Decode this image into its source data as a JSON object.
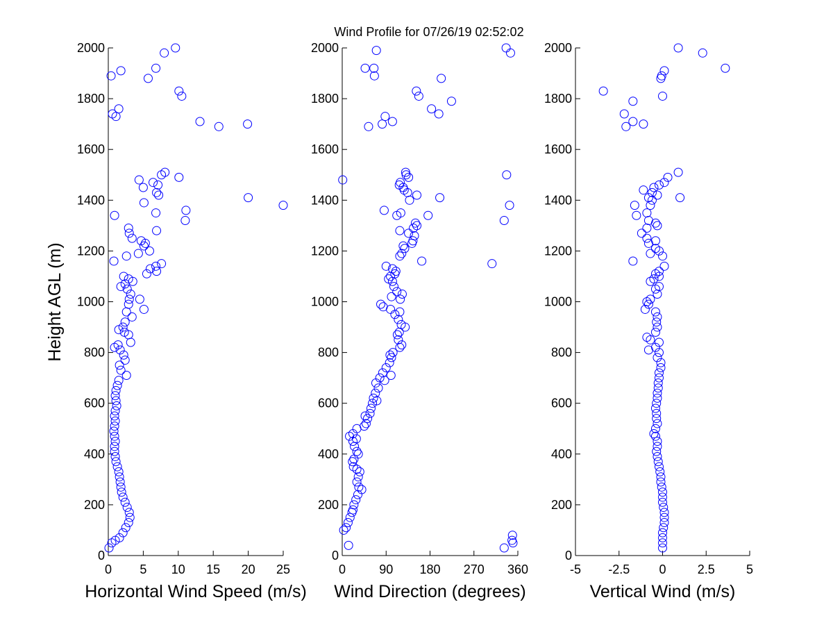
{
  "figure_title": "Wind Profile for  07/26/19 02:52:02",
  "ylabel": "Height AGL (m)",
  "marker_color": "#0000ff",
  "chart_data": [
    {
      "type": "scatter",
      "title": "",
      "xlabel": "Horizontal Wind Speed (m/s)",
      "ylabel": "Height AGL (m)",
      "xlim": [
        0,
        25
      ],
      "ylim": [
        0,
        2000
      ],
      "xticks": [
        0,
        5,
        10,
        15,
        20,
        25
      ],
      "xtick_labels": [
        "0",
        "5",
        "10",
        "15",
        "20",
        "25"
      ],
      "yticks": [
        0,
        200,
        400,
        600,
        800,
        1000,
        1200,
        1400,
        1600,
        1800,
        2000
      ],
      "ytick_labels": [
        "0",
        "200",
        "400",
        "600",
        "800",
        "1000",
        "1200",
        "1400",
        "1600",
        "1800",
        "2000"
      ],
      "marker": "open-circle",
      "points": [
        [
          0.1,
          30
        ],
        [
          0.5,
          50
        ],
        [
          1.0,
          60
        ],
        [
          1.6,
          70
        ],
        [
          2.1,
          90
        ],
        [
          2.5,
          110
        ],
        [
          2.9,
          130
        ],
        [
          3.1,
          150
        ],
        [
          3.0,
          170
        ],
        [
          2.7,
          190
        ],
        [
          2.4,
          210
        ],
        [
          2.1,
          230
        ],
        [
          1.9,
          250
        ],
        [
          1.8,
          270
        ],
        [
          1.7,
          290
        ],
        [
          1.6,
          310
        ],
        [
          1.5,
          330
        ],
        [
          1.3,
          350
        ],
        [
          1.1,
          370
        ],
        [
          1.0,
          390
        ],
        [
          0.9,
          410
        ],
        [
          0.9,
          430
        ],
        [
          1.0,
          450
        ],
        [
          0.9,
          470
        ],
        [
          0.8,
          490
        ],
        [
          0.9,
          510
        ],
        [
          1.0,
          530
        ],
        [
          0.9,
          550
        ],
        [
          1.0,
          570
        ],
        [
          1.2,
          590
        ],
        [
          1.1,
          610
        ],
        [
          1.0,
          630
        ],
        [
          1.1,
          650
        ],
        [
          1.3,
          670
        ],
        [
          1.5,
          690
        ],
        [
          2.6,
          710
        ],
        [
          1.8,
          730
        ],
        [
          1.6,
          750
        ],
        [
          2.4,
          770
        ],
        [
          2.2,
          790
        ],
        [
          1.7,
          810
        ],
        [
          0.9,
          820
        ],
        [
          1.4,
          830
        ],
        [
          3.2,
          840
        ],
        [
          2.9,
          870
        ],
        [
          2.3,
          880
        ],
        [
          1.5,
          890
        ],
        [
          2.1,
          900
        ],
        [
          2.4,
          920
        ],
        [
          3.4,
          940
        ],
        [
          2.6,
          960
        ],
        [
          5.1,
          970
        ],
        [
          2.9,
          990
        ],
        [
          3.0,
          1010
        ],
        [
          4.5,
          1010
        ],
        [
          3.2,
          1030
        ],
        [
          2.7,
          1050
        ],
        [
          1.8,
          1060
        ],
        [
          2.4,
          1070
        ],
        [
          3.5,
          1080
        ],
        [
          2.9,
          1090
        ],
        [
          2.2,
          1100
        ],
        [
          5.5,
          1110
        ],
        [
          6.9,
          1120
        ],
        [
          6.0,
          1130
        ],
        [
          6.8,
          1140
        ],
        [
          7.6,
          1150
        ],
        [
          0.8,
          1160
        ],
        [
          2.6,
          1180
        ],
        [
          4.3,
          1190
        ],
        [
          5.9,
          1200
        ],
        [
          5.1,
          1220
        ],
        [
          5.3,
          1230
        ],
        [
          4.7,
          1240
        ],
        [
          3.4,
          1250
        ],
        [
          3.0,
          1270
        ],
        [
          2.9,
          1290
        ],
        [
          6.9,
          1280
        ],
        [
          11.0,
          1320
        ],
        [
          0.9,
          1340
        ],
        [
          6.8,
          1350
        ],
        [
          11.1,
          1360
        ],
        [
          20.0,
          1410
        ],
        [
          25.0,
          1380
        ],
        [
          7.2,
          1420
        ],
        [
          6.9,
          1430
        ],
        [
          5.0,
          1450
        ],
        [
          7.1,
          1460
        ],
        [
          6.4,
          1470
        ],
        [
          4.4,
          1480
        ],
        [
          10.1,
          1490
        ],
        [
          7.6,
          1500
        ],
        [
          8.1,
          1510
        ],
        [
          5.1,
          1390
        ],
        [
          0.6,
          1740
        ],
        [
          1.1,
          1730
        ],
        [
          1.5,
          1760
        ],
        [
          0.4,
          1890
        ],
        [
          1.8,
          1910
        ],
        [
          5.7,
          1880
        ],
        [
          6.8,
          1920
        ],
        [
          8.0,
          1980
        ],
        [
          9.6,
          2000
        ],
        [
          10.1,
          1830
        ],
        [
          10.5,
          1810
        ],
        [
          13.1,
          1710
        ],
        [
          15.8,
          1690
        ],
        [
          19.9,
          1700
        ]
      ]
    },
    {
      "type": "scatter",
      "title": "",
      "xlabel": "Wind Direction (degrees)",
      "ylabel": "",
      "xlim": [
        0,
        360
      ],
      "ylim": [
        0,
        2000
      ],
      "xticks": [
        0,
        90,
        180,
        270,
        360
      ],
      "xtick_labels": [
        "0",
        "90",
        "180",
        "270",
        "360"
      ],
      "yticks": [
        0,
        200,
        400,
        600,
        800,
        1000,
        1200,
        1400,
        1600,
        1800,
        2000
      ],
      "ytick_labels": [
        "0",
        "200",
        "400",
        "600",
        "800",
        "1000",
        "1200",
        "1400",
        "1600",
        "1800",
        "2000"
      ],
      "marker": "open-circle",
      "points": [
        [
          13,
          40
        ],
        [
          3,
          100
        ],
        [
          8,
          110
        ],
        [
          12,
          130
        ],
        [
          16,
          150
        ],
        [
          20,
          170
        ],
        [
          22,
          180
        ],
        [
          24,
          200
        ],
        [
          28,
          220
        ],
        [
          32,
          240
        ],
        [
          40,
          260
        ],
        [
          34,
          270
        ],
        [
          30,
          290
        ],
        [
          33,
          310
        ],
        [
          36,
          330
        ],
        [
          30,
          340
        ],
        [
          23,
          350
        ],
        [
          21,
          370
        ],
        [
          24,
          380
        ],
        [
          33,
          400
        ],
        [
          30,
          410
        ],
        [
          25,
          430
        ],
        [
          22,
          450
        ],
        [
          29,
          460
        ],
        [
          15,
          470
        ],
        [
          22,
          480
        ],
        [
          30,
          500
        ],
        [
          45,
          510
        ],
        [
          49,
          520
        ],
        [
          52,
          540
        ],
        [
          47,
          550
        ],
        [
          57,
          560
        ],
        [
          59,
          580
        ],
        [
          62,
          600
        ],
        [
          71,
          610
        ],
        [
          64,
          620
        ],
        [
          68,
          640
        ],
        [
          74,
          660
        ],
        [
          69,
          680
        ],
        [
          87,
          690
        ],
        [
          77,
          700
        ],
        [
          100,
          710
        ],
        [
          83,
          720
        ],
        [
          90,
          740
        ],
        [
          97,
          760
        ],
        [
          101,
          780
        ],
        [
          98,
          790
        ],
        [
          104,
          800
        ],
        [
          118,
          820
        ],
        [
          122,
          830
        ],
        [
          115,
          850
        ],
        [
          113,
          870
        ],
        [
          117,
          880
        ],
        [
          129,
          900
        ],
        [
          121,
          910
        ],
        [
          115,
          930
        ],
        [
          108,
          950
        ],
        [
          118,
          960
        ],
        [
          99,
          970
        ],
        [
          84,
          980
        ],
        [
          79,
          990
        ],
        [
          123,
          1030
        ],
        [
          101,
          1020
        ],
        [
          119,
          1010
        ],
        [
          112,
          1040
        ],
        [
          106,
          1060
        ],
        [
          103,
          1080
        ],
        [
          95,
          1090
        ],
        [
          99,
          1100
        ],
        [
          108,
          1110
        ],
        [
          110,
          1120
        ],
        [
          103,
          1130
        ],
        [
          90,
          1140
        ],
        [
          163,
          1160
        ],
        [
          118,
          1180
        ],
        [
          122,
          1190
        ],
        [
          128,
          1210
        ],
        [
          125,
          1220
        ],
        [
          143,
          1230
        ],
        [
          145,
          1240
        ],
        [
          148,
          1260
        ],
        [
          136,
          1270
        ],
        [
          146,
          1290
        ],
        [
          153,
          1300
        ],
        [
          150,
          1310
        ],
        [
          118,
          1280
        ],
        [
          112,
          1340
        ],
        [
          176,
          1340
        ],
        [
          153,
          1420
        ],
        [
          86,
          1360
        ],
        [
          120,
          1350
        ],
        [
          200,
          1410
        ],
        [
          138,
          1400
        ],
        [
          134,
          1430
        ],
        [
          127,
          1440
        ],
        [
          125,
          1450
        ],
        [
          117,
          1460
        ],
        [
          119,
          1470
        ],
        [
          1,
          1480
        ],
        [
          136,
          1490
        ],
        [
          131,
          1500
        ],
        [
          130,
          1510
        ],
        [
          332,
          1320
        ],
        [
          343,
          1380
        ],
        [
          337,
          1500
        ],
        [
          307,
          1150
        ],
        [
          54,
          1690
        ],
        [
          82,
          1700
        ],
        [
          103,
          1710
        ],
        [
          88,
          1730
        ],
        [
          198,
          1740
        ],
        [
          183,
          1760
        ],
        [
          224,
          1790
        ],
        [
          157,
          1810
        ],
        [
          152,
          1830
        ],
        [
          203,
          1880
        ],
        [
          66,
          1890
        ],
        [
          47,
          1920
        ],
        [
          65,
          1920
        ],
        [
          70,
          1990
        ],
        [
          336,
          2000
        ],
        [
          345,
          1980
        ],
        [
          332,
          30
        ],
        [
          350,
          50
        ],
        [
          348,
          60
        ],
        [
          349,
          80
        ]
      ]
    },
    {
      "type": "scatter",
      "title": "",
      "xlabel": "Vertical Wind (m/s)",
      "ylabel": "",
      "xlim": [
        -5,
        5
      ],
      "ylim": [
        0,
        2000
      ],
      "xticks": [
        -5,
        -2.5,
        0,
        2.5,
        5
      ],
      "xtick_labels": [
        "-5",
        "-2.5",
        "0",
        "2.5",
        "5"
      ],
      "yticks": [
        0,
        200,
        400,
        600,
        800,
        1000,
        1200,
        1400,
        1600,
        1800,
        2000
      ],
      "ytick_labels": [
        "0",
        "200",
        "400",
        "600",
        "800",
        "1000",
        "1200",
        "1400",
        "1600",
        "1800",
        "2000"
      ],
      "marker": "open-circle",
      "points": [
        [
          0.0,
          30
        ],
        [
          0.0,
          50
        ],
        [
          0.0,
          70
        ],
        [
          0.0,
          90
        ],
        [
          0.05,
          110
        ],
        [
          0.1,
          130
        ],
        [
          0.1,
          150
        ],
        [
          0.1,
          170
        ],
        [
          0.05,
          190
        ],
        [
          0.0,
          210
        ],
        [
          0.0,
          230
        ],
        [
          0.0,
          250
        ],
        [
          -0.05,
          270
        ],
        [
          -0.1,
          290
        ],
        [
          -0.1,
          310
        ],
        [
          -0.15,
          330
        ],
        [
          -0.2,
          350
        ],
        [
          -0.25,
          370
        ],
        [
          -0.3,
          390
        ],
        [
          -0.35,
          410
        ],
        [
          -0.3,
          430
        ],
        [
          -0.3,
          450
        ],
        [
          -0.4,
          470
        ],
        [
          -0.5,
          480
        ],
        [
          -0.4,
          500
        ],
        [
          -0.3,
          520
        ],
        [
          -0.35,
          540
        ],
        [
          -0.35,
          560
        ],
        [
          -0.4,
          580
        ],
        [
          -0.35,
          600
        ],
        [
          -0.3,
          620
        ],
        [
          -0.3,
          640
        ],
        [
          -0.25,
          660
        ],
        [
          -0.25,
          680
        ],
        [
          -0.2,
          700
        ],
        [
          -0.2,
          720
        ],
        [
          -0.1,
          740
        ],
        [
          -0.1,
          760
        ],
        [
          -0.3,
          780
        ],
        [
          -0.8,
          810
        ],
        [
          -0.2,
          800
        ],
        [
          -0.4,
          820
        ],
        [
          -0.2,
          840
        ],
        [
          -0.7,
          850
        ],
        [
          -0.9,
          860
        ],
        [
          -0.4,
          880
        ],
        [
          -0.3,
          900
        ],
        [
          -0.35,
          920
        ],
        [
          -0.3,
          940
        ],
        [
          -0.4,
          960
        ],
        [
          -1.0,
          970
        ],
        [
          -0.8,
          990
        ],
        [
          -0.9,
          1000
        ],
        [
          -0.7,
          1010
        ],
        [
          -0.3,
          1030
        ],
        [
          -0.4,
          1050
        ],
        [
          -0.2,
          1060
        ],
        [
          -0.7,
          1080
        ],
        [
          -0.5,
          1090
        ],
        [
          -0.2,
          1100
        ],
        [
          -0.4,
          1110
        ],
        [
          -0.2,
          1120
        ],
        [
          0.1,
          1140
        ],
        [
          -1.7,
          1160
        ],
        [
          -0.7,
          1190
        ],
        [
          -0.2,
          1200
        ],
        [
          -0.4,
          1210
        ],
        [
          -0.8,
          1230
        ],
        [
          -0.4,
          1240
        ],
        [
          -0.9,
          1250
        ],
        [
          -1.2,
          1270
        ],
        [
          -0.9,
          1290
        ],
        [
          -0.3,
          1300
        ],
        [
          -0.4,
          1310
        ],
        [
          -0.8,
          1320
        ],
        [
          -0.9,
          1350
        ],
        [
          -0.7,
          1380
        ],
        [
          -1.6,
          1380
        ],
        [
          -0.8,
          1410
        ],
        [
          -0.3,
          1420
        ],
        [
          -0.6,
          1430
        ],
        [
          -0.5,
          1450
        ],
        [
          -0.2,
          1460
        ],
        [
          0.1,
          1470
        ],
        [
          0.3,
          1490
        ],
        [
          0.9,
          1510
        ],
        [
          1.0,
          1410
        ],
        [
          -1.1,
          1440
        ],
        [
          -0.6,
          1400
        ],
        [
          -1.5,
          1340
        ],
        [
          0.0,
          1180
        ],
        [
          -3.4,
          1830
        ],
        [
          -1.7,
          1790
        ],
        [
          -2.2,
          1740
        ],
        [
          -1.7,
          1710
        ],
        [
          -2.1,
          1690
        ],
        [
          -1.1,
          1700
        ],
        [
          0.0,
          1810
        ],
        [
          -0.1,
          1880
        ],
        [
          -0.05,
          1890
        ],
        [
          0.1,
          1910
        ],
        [
          0.9,
          2000
        ],
        [
          2.3,
          1980
        ],
        [
          3.6,
          1920
        ]
      ]
    }
  ]
}
